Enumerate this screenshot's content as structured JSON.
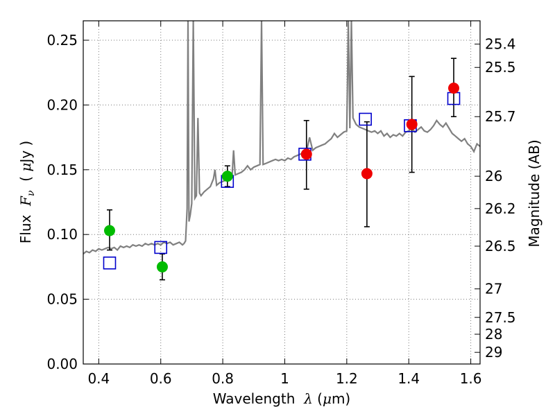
{
  "chart_data": {
    "type": "scatter",
    "xlabel": {
      "prefix": "Wavelength  ",
      "symbol": "λ",
      "unit_open": " (",
      "unit_mu": "μ",
      "unit_rest": "m)"
    },
    "ylabel": {
      "prefix": "Flux  ",
      "symbol": "F",
      "sub": "ν",
      "unit_open": "  ( ",
      "unit_mu": "μ",
      "unit_rest": "Jy )"
    },
    "y2label": "Magnitude (AB)",
    "xlim": [
      0.35,
      1.63
    ],
    "ylim": [
      0.0,
      0.265
    ],
    "grid": true,
    "x_ticks": [
      {
        "value": 0.4,
        "label": "0.4"
      },
      {
        "value": 0.6,
        "label": "0.6"
      },
      {
        "value": 0.8,
        "label": "0.8"
      },
      {
        "value": 1.0,
        "label": "1"
      },
      {
        "value": 1.2,
        "label": "1.2"
      },
      {
        "value": 1.4,
        "label": "1.4"
      },
      {
        "value": 1.6,
        "label": "1.6"
      }
    ],
    "y_ticks": [
      {
        "value": 0.0,
        "label": "0.00"
      },
      {
        "value": 0.05,
        "label": "0.05"
      },
      {
        "value": 0.1,
        "label": "0.10"
      },
      {
        "value": 0.15,
        "label": "0.15"
      },
      {
        "value": 0.2,
        "label": "0.20"
      },
      {
        "value": 0.25,
        "label": "0.25"
      }
    ],
    "y2_ticks": [
      {
        "flux": 0.247,
        "label": "25.4"
      },
      {
        "flux": 0.229,
        "label": "25.5"
      },
      {
        "flux": 0.191,
        "label": "25.7"
      },
      {
        "flux": 0.145,
        "label": "26"
      },
      {
        "flux": 0.12,
        "label": "26.2"
      },
      {
        "flux": 0.091,
        "label": "26.5"
      },
      {
        "flux": 0.058,
        "label": "27"
      },
      {
        "flux": 0.036,
        "label": "27.5"
      },
      {
        "flux": 0.023,
        "label": "28"
      },
      {
        "flux": 0.009,
        "label": "29"
      }
    ],
    "colors": {
      "template": "#808080",
      "model": "#0000cc",
      "optical": "#00bb00",
      "nir": "#ee0000",
      "errorbar": "#000000",
      "grid": "#777777"
    },
    "series": [
      {
        "kind": "template_spectrum",
        "style": "line",
        "points": [
          [
            0.35,
            0.085
          ],
          [
            0.36,
            0.087
          ],
          [
            0.37,
            0.086
          ],
          [
            0.38,
            0.088
          ],
          [
            0.39,
            0.087
          ],
          [
            0.4,
            0.089
          ],
          [
            0.41,
            0.088
          ],
          [
            0.42,
            0.089
          ],
          [
            0.43,
            0.09
          ],
          [
            0.44,
            0.089
          ],
          [
            0.45,
            0.09
          ],
          [
            0.46,
            0.088
          ],
          [
            0.47,
            0.091
          ],
          [
            0.48,
            0.09
          ],
          [
            0.49,
            0.091
          ],
          [
            0.5,
            0.09
          ],
          [
            0.51,
            0.092
          ],
          [
            0.52,
            0.091
          ],
          [
            0.53,
            0.092
          ],
          [
            0.54,
            0.091
          ],
          [
            0.55,
            0.093
          ],
          [
            0.56,
            0.092
          ],
          [
            0.57,
            0.093
          ],
          [
            0.58,
            0.092
          ],
          [
            0.59,
            0.093
          ],
          [
            0.6,
            0.092
          ],
          [
            0.61,
            0.094
          ],
          [
            0.62,
            0.093
          ],
          [
            0.63,
            0.094
          ],
          [
            0.64,
            0.092
          ],
          [
            0.65,
            0.093
          ],
          [
            0.66,
            0.094
          ],
          [
            0.67,
            0.092
          ],
          [
            0.675,
            0.093
          ],
          [
            0.68,
            0.095
          ],
          [
            0.685,
            0.12
          ],
          [
            0.688,
            0.265
          ],
          [
            0.691,
            0.11
          ],
          [
            0.695,
            0.115
          ],
          [
            0.7,
            0.124
          ],
          [
            0.705,
            0.265
          ],
          [
            0.71,
            0.128
          ],
          [
            0.715,
            0.13
          ],
          [
            0.72,
            0.19
          ],
          [
            0.725,
            0.132
          ],
          [
            0.73,
            0.13
          ],
          [
            0.74,
            0.133
          ],
          [
            0.75,
            0.135
          ],
          [
            0.76,
            0.137
          ],
          [
            0.77,
            0.143
          ],
          [
            0.775,
            0.15
          ],
          [
            0.78,
            0.138
          ],
          [
            0.79,
            0.14
          ],
          [
            0.8,
            0.141
          ],
          [
            0.81,
            0.142
          ],
          [
            0.82,
            0.143
          ],
          [
            0.83,
            0.145
          ],
          [
            0.835,
            0.165
          ],
          [
            0.84,
            0.146
          ],
          [
            0.85,
            0.147
          ],
          [
            0.86,
            0.148
          ],
          [
            0.87,
            0.15
          ],
          [
            0.88,
            0.153
          ],
          [
            0.89,
            0.15
          ],
          [
            0.9,
            0.152
          ],
          [
            0.91,
            0.153
          ],
          [
            0.92,
            0.154
          ],
          [
            0.925,
            0.265
          ],
          [
            0.93,
            0.154
          ],
          [
            0.94,
            0.155
          ],
          [
            0.95,
            0.156
          ],
          [
            0.96,
            0.157
          ],
          [
            0.97,
            0.158
          ],
          [
            0.98,
            0.157
          ],
          [
            0.99,
            0.158
          ],
          [
            1.0,
            0.157
          ],
          [
            1.01,
            0.159
          ],
          [
            1.02,
            0.158
          ],
          [
            1.03,
            0.16
          ],
          [
            1.04,
            0.161
          ],
          [
            1.05,
            0.162
          ],
          [
            1.06,
            0.163
          ],
          [
            1.07,
            0.164
          ],
          [
            1.08,
            0.175
          ],
          [
            1.09,
            0.165
          ],
          [
            1.1,
            0.167
          ],
          [
            1.11,
            0.168
          ],
          [
            1.12,
            0.169
          ],
          [
            1.13,
            0.17
          ],
          [
            1.14,
            0.172
          ],
          [
            1.15,
            0.174
          ],
          [
            1.16,
            0.178
          ],
          [
            1.17,
            0.175
          ],
          [
            1.18,
            0.177
          ],
          [
            1.19,
            0.179
          ],
          [
            1.2,
            0.18
          ],
          [
            1.205,
            0.265
          ],
          [
            1.21,
            0.182
          ],
          [
            1.215,
            0.265
          ],
          [
            1.22,
            0.19
          ],
          [
            1.23,
            0.185
          ],
          [
            1.24,
            0.183
          ],
          [
            1.25,
            0.182
          ],
          [
            1.26,
            0.181
          ],
          [
            1.27,
            0.18
          ],
          [
            1.28,
            0.179
          ],
          [
            1.29,
            0.18
          ],
          [
            1.3,
            0.178
          ],
          [
            1.31,
            0.18
          ],
          [
            1.32,
            0.176
          ],
          [
            1.33,
            0.178
          ],
          [
            1.34,
            0.175
          ],
          [
            1.35,
            0.177
          ],
          [
            1.36,
            0.176
          ],
          [
            1.37,
            0.178
          ],
          [
            1.38,
            0.176
          ],
          [
            1.39,
            0.179
          ],
          [
            1.4,
            0.18
          ],
          [
            1.41,
            0.182
          ],
          [
            1.42,
            0.179
          ],
          [
            1.43,
            0.181
          ],
          [
            1.44,
            0.183
          ],
          [
            1.45,
            0.18
          ],
          [
            1.46,
            0.179
          ],
          [
            1.47,
            0.181
          ],
          [
            1.48,
            0.184
          ],
          [
            1.49,
            0.188
          ],
          [
            1.5,
            0.185
          ],
          [
            1.51,
            0.183
          ],
          [
            1.52,
            0.186
          ],
          [
            1.53,
            0.182
          ],
          [
            1.54,
            0.178
          ],
          [
            1.55,
            0.176
          ],
          [
            1.56,
            0.174
          ],
          [
            1.57,
            0.172
          ],
          [
            1.58,
            0.174
          ],
          [
            1.59,
            0.17
          ],
          [
            1.6,
            0.168
          ],
          [
            1.61,
            0.164
          ],
          [
            1.62,
            0.17
          ],
          [
            1.63,
            0.168
          ]
        ]
      },
      {
        "kind": "model_photometry",
        "style": "open-square",
        "points": [
          [
            0.435,
            0.078
          ],
          [
            0.6,
            0.09
          ],
          [
            0.815,
            0.141
          ],
          [
            1.065,
            0.162
          ],
          [
            1.26,
            0.189
          ],
          [
            1.405,
            0.184
          ],
          [
            1.545,
            0.205
          ]
        ]
      },
      {
        "kind": "optical_photometry",
        "style": "filled-circle",
        "points": [
          {
            "x": 0.435,
            "y": 0.103,
            "err_lo": 0.015,
            "err_hi": 0.016
          },
          {
            "x": 0.605,
            "y": 0.075,
            "err_lo": 0.01,
            "err_hi": 0.01
          },
          {
            "x": 0.815,
            "y": 0.145,
            "err_lo": 0.008,
            "err_hi": 0.008
          }
        ]
      },
      {
        "kind": "nir_photometry",
        "style": "filled-circle",
        "points": [
          {
            "x": 1.07,
            "y": 0.162,
            "err_lo": 0.027,
            "err_hi": 0.026
          },
          {
            "x": 1.265,
            "y": 0.147,
            "err_lo": 0.041,
            "err_hi": 0.04
          },
          {
            "x": 1.41,
            "y": 0.185,
            "err_lo": 0.037,
            "err_hi": 0.037
          },
          {
            "x": 1.545,
            "y": 0.213,
            "err_lo": 0.022,
            "err_hi": 0.023
          }
        ]
      }
    ]
  }
}
